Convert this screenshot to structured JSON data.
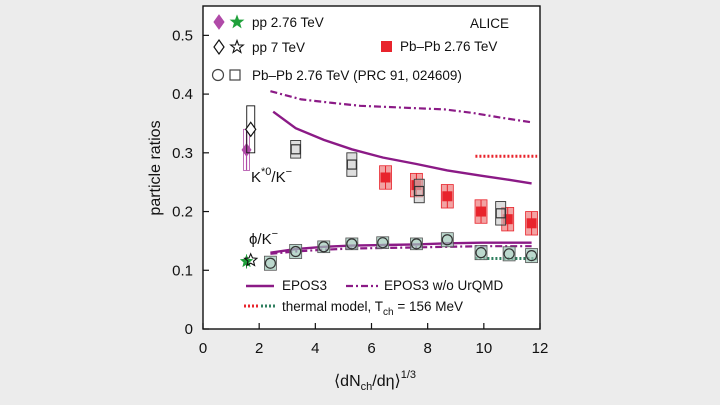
{
  "chart_data": {
    "type": "scatter",
    "title": "",
    "xlabel": "⟨dN",
    "xlabel_sub": "ch",
    "xlabel_mid": "/dη⟩",
    "xlabel_sup": "1/3",
    "ylabel": "particle ratios",
    "xlim": [
      0,
      12
    ],
    "ylim": [
      0,
      0.55
    ],
    "xticks": [
      0,
      2,
      4,
      6,
      8,
      10,
      12
    ],
    "yticks": [
      0,
      0.1,
      0.2,
      0.3,
      0.4,
      0.5
    ],
    "xtick_labels": [
      "0",
      "2",
      "4",
      "6",
      "8",
      "10",
      "12"
    ],
    "ytick_labels": [
      "0",
      "0.1",
      "0.2",
      "0.3",
      "0.4",
      "0.5"
    ],
    "colors": {
      "pp276": "#b04aa8",
      "pp7": "#111111",
      "pbpb": "#e8242c",
      "pbpb_sys": "#f2a3a3",
      "prc_open": "#444444",
      "prc_fill_kstar": "#c8c8c8",
      "prc_fill_phi": "#9ec8b8",
      "pp276_star": "#1fa03a",
      "epos": "#8b1a86",
      "thermal": "#e8242c",
      "thermal_phi": "#2f7f5f"
    },
    "annotations": {
      "alice": "ALICE",
      "kstar_base": "K",
      "kstar_sup": "*0",
      "kstar_mid": "/K",
      "kstar_sup2": "−",
      "phi_base": "ϕ/K",
      "phi_sup": "−"
    },
    "legend": {
      "pp276_label": "pp 2.76 TeV",
      "pp7_label": "pp 7 TeV",
      "pbpb_label": "Pb–Pb 2.76 TeV",
      "prc_label": "Pb–Pb 2.76 TeV (PRC 91, 024609)",
      "epos3_label": "EPOS3",
      "epos3_wo_label": "EPOS3 w/o UrQMD",
      "thermal_label_pre": "thermal model, T",
      "thermal_label_sub": "ch",
      "thermal_label_post": " = 156 MeV"
    },
    "series": [
      {
        "name": "pp 2.76 TeV K*0/K−",
        "marker": "diamond-filled",
        "color": "#b04aa8",
        "points": [
          {
            "x": 1.55,
            "y": 0.305,
            "err": 0.035
          }
        ]
      },
      {
        "name": "pp 7 TeV K*0/K−",
        "marker": "diamond-open",
        "color": "#111111",
        "points": [
          {
            "x": 1.7,
            "y": 0.34,
            "err": 0.04
          }
        ]
      },
      {
        "name": "pp 2.76 TeV φ/K−",
        "marker": "star-filled",
        "color": "#1fa03a",
        "points": [
          {
            "x": 1.55,
            "y": 0.115,
            "err": 0.012
          }
        ]
      },
      {
        "name": "pp 7 TeV φ/K−",
        "marker": "star-open",
        "color": "#111111",
        "points": [
          {
            "x": 1.7,
            "y": 0.117,
            "err": 0.01
          }
        ]
      },
      {
        "name": "Pb–Pb 2.76 TeV K*0/K−",
        "marker": "square-filled",
        "color": "#e8242c",
        "points": [
          {
            "x": 6.5,
            "y": 0.258,
            "err": 0.02
          },
          {
            "x": 7.6,
            "y": 0.245,
            "err": 0.02
          },
          {
            "x": 8.7,
            "y": 0.226,
            "err": 0.02
          },
          {
            "x": 9.9,
            "y": 0.2,
            "err": 0.02
          },
          {
            "x": 10.85,
            "y": 0.187,
            "err": 0.02
          },
          {
            "x": 11.7,
            "y": 0.18,
            "err": 0.02
          }
        ]
      },
      {
        "name": "Pb–Pb 2.76 TeV (PRC 91, 024609) K*0/K−",
        "marker": "square-open",
        "color": "#444444",
        "points": [
          {
            "x": 3.3,
            "y": 0.306,
            "err": 0.015
          },
          {
            "x": 5.3,
            "y": 0.28,
            "err": 0.02
          },
          {
            "x": 7.7,
            "y": 0.235,
            "err": 0.02
          },
          {
            "x": 10.6,
            "y": 0.197,
            "err": 0.02
          }
        ]
      },
      {
        "name": "Pb–Pb 2.76 TeV (PRC 91, 024609) φ/K−",
        "marker": "circle-open",
        "color": "#444444",
        "points": [
          {
            "x": 2.4,
            "y": 0.112,
            "err": 0.012
          },
          {
            "x": 3.3,
            "y": 0.132,
            "err": 0.012
          },
          {
            "x": 4.3,
            "y": 0.14,
            "err": 0.01
          },
          {
            "x": 5.3,
            "y": 0.145,
            "err": 0.01
          },
          {
            "x": 6.4,
            "y": 0.147,
            "err": 0.01
          },
          {
            "x": 7.6,
            "y": 0.145,
            "err": 0.01
          },
          {
            "x": 8.7,
            "y": 0.152,
            "err": 0.012
          },
          {
            "x": 9.9,
            "y": 0.13,
            "err": 0.012
          },
          {
            "x": 10.9,
            "y": 0.128,
            "err": 0.012
          },
          {
            "x": 11.7,
            "y": 0.125,
            "err": 0.012
          }
        ]
      }
    ],
    "curves": [
      {
        "name": "EPOS3 K*0/K−",
        "style": "solid",
        "color": "#8b1a86",
        "points": [
          [
            2.5,
            0.37
          ],
          [
            3.3,
            0.342
          ],
          [
            4.3,
            0.322
          ],
          [
            5.3,
            0.306
          ],
          [
            6.4,
            0.292
          ],
          [
            7.6,
            0.281
          ],
          [
            8.7,
            0.27
          ],
          [
            9.9,
            0.261
          ],
          [
            10.9,
            0.254
          ],
          [
            11.7,
            0.248
          ]
        ]
      },
      {
        "name": "EPOS3 w/o UrQMD K*0/K−",
        "style": "dashdot",
        "color": "#8b1a86",
        "points": [
          [
            2.4,
            0.405
          ],
          [
            3.5,
            0.391
          ],
          [
            4.6,
            0.385
          ],
          [
            5.6,
            0.38
          ],
          [
            6.6,
            0.378
          ],
          [
            7.6,
            0.376
          ],
          [
            8.6,
            0.374
          ],
          [
            9.6,
            0.368
          ],
          [
            10.6,
            0.36
          ],
          [
            11.7,
            0.352
          ]
        ]
      },
      {
        "name": "EPOS3 φ/K−",
        "style": "solid",
        "color": "#8b1a86",
        "points": [
          [
            2.4,
            0.13
          ],
          [
            3.3,
            0.136
          ],
          [
            4.3,
            0.14
          ],
          [
            5.3,
            0.142
          ],
          [
            6.4,
            0.143
          ],
          [
            7.6,
            0.144
          ],
          [
            8.7,
            0.146
          ],
          [
            9.9,
            0.147
          ],
          [
            10.9,
            0.147
          ],
          [
            11.7,
            0.147
          ]
        ]
      },
      {
        "name": "EPOS3 w/o UrQMD φ/K−",
        "style": "dashdot",
        "color": "#8b1a86",
        "points": [
          [
            2.4,
            0.128
          ],
          [
            3.3,
            0.132
          ],
          [
            4.3,
            0.135
          ],
          [
            5.3,
            0.137
          ],
          [
            6.4,
            0.138
          ],
          [
            7.6,
            0.139
          ],
          [
            8.7,
            0.14
          ],
          [
            9.9,
            0.141
          ],
          [
            10.9,
            0.141
          ],
          [
            11.7,
            0.141
          ]
        ]
      },
      {
        "name": "thermal model K*0/K−",
        "style": "dotted",
        "color": "#e8242c",
        "points": [
          [
            9.7,
            0.294
          ],
          [
            11.9,
            0.294
          ]
        ]
      },
      {
        "name": "thermal model φ/K−",
        "style": "dotted",
        "color": "#2f7f5f",
        "points": [
          [
            9.7,
            0.12
          ],
          [
            11.9,
            0.12
          ]
        ]
      }
    ]
  }
}
